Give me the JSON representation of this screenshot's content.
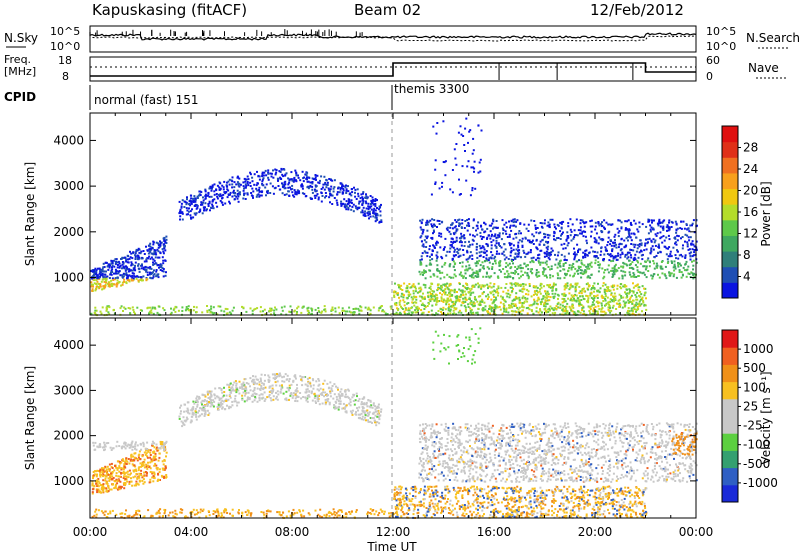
{
  "header": {
    "station": "Kapuskasing (fitACF)",
    "beam": "Beam 02",
    "date": "12/Feb/2012"
  },
  "panels": {
    "noise": {
      "left_label": "N.Sky",
      "right_label": "N.Search",
      "left_ticks": [
        "10^5",
        "10^0"
      ],
      "right_ticks": [
        "10^5",
        "10^0"
      ]
    },
    "freq": {
      "left_label_line1": "Freq.",
      "left_label_line2": "[MHz]",
      "right_label": "Nave",
      "left_ticks": [
        "18",
        "8"
      ],
      "right_ticks": [
        "60",
        "0"
      ]
    },
    "cpid": {
      "label": "CPID",
      "mode1": "normal (fast) 151",
      "mode2": "themis 3300"
    }
  },
  "colors": {
    "power": [
      "#0a14e0",
      "#1f4fb4",
      "#2f7f7a",
      "#3fa860",
      "#5ec94a",
      "#b4dc2a",
      "#f0c810",
      "#f8a01c",
      "#f07020",
      "#e03018",
      "#e01010"
    ],
    "velocity": [
      "#1a2ad8",
      "#2f5fc4",
      "#34a070",
      "#5cd040",
      "#c8c8c8",
      "#c8c8c8",
      "#f8c020",
      "#f09018",
      "#f06020",
      "#e01818"
    ]
  },
  "chart_data": [
    {
      "type": "heatmap",
      "name": "power",
      "ylabel": "Slant Range [km]",
      "xlabel": "",
      "x_ticks": [
        "00:00",
        "04:00",
        "08:00",
        "12:00",
        "16:00",
        "20:00",
        "00:00"
      ],
      "xlim_hours": [
        0,
        24
      ],
      "ylim": [
        180,
        4600
      ],
      "y_ticks": [
        1000,
        2000,
        3000,
        4000
      ],
      "colorbar_label": "Power [dB]",
      "colorbar_ticks": [
        "28",
        "24",
        "20",
        "16",
        "12",
        "8",
        "4"
      ],
      "colorbar_range": [
        0,
        30
      ]
    },
    {
      "type": "heatmap",
      "name": "velocity",
      "ylabel": "Slant Range [km]",
      "xlabel": "Time UT",
      "x_ticks": [
        "00:00",
        "04:00",
        "08:00",
        "12:00",
        "16:00",
        "20:00",
        "00:00"
      ],
      "xlim_hours": [
        0,
        24
      ],
      "ylim": [
        180,
        4600
      ],
      "y_ticks": [
        1000,
        2000,
        3000,
        4000
      ],
      "colorbar_label": "Velocity [m s⁻¹]",
      "colorbar_ticks": [
        "1000",
        "500",
        "100",
        "25",
        "-25",
        "-100",
        "-500",
        "-1000"
      ]
    }
  ]
}
